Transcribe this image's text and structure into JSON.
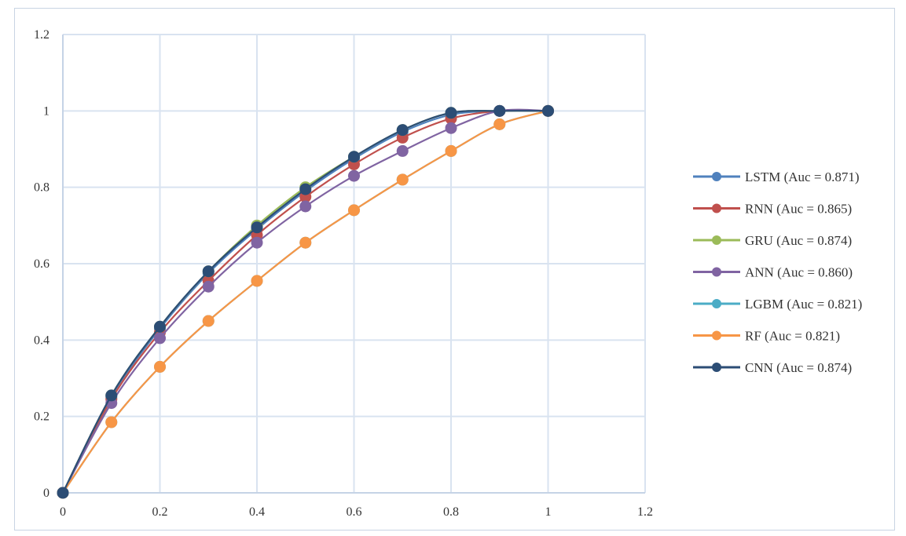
{
  "chart_data": {
    "type": "line",
    "title": "",
    "xlabel": "",
    "ylabel": "",
    "xlim": [
      0,
      1.2
    ],
    "ylim": [
      0,
      1.2
    ],
    "x_ticks": [
      0,
      0.2,
      0.4,
      0.6,
      0.8,
      1,
      1.2
    ],
    "y_ticks": [
      0,
      0.2,
      0.4,
      0.6,
      0.8,
      1,
      1.2
    ],
    "x_tick_labels": [
      "0",
      "0.2",
      "0.4",
      "0.6",
      "0.8",
      "1",
      "1.2"
    ],
    "y_tick_labels": [
      "0",
      "0.2",
      "0.4",
      "0.6",
      "0.8",
      "1",
      "1.2"
    ],
    "grid": true,
    "legend_position": "right",
    "x": [
      0,
      0.1,
      0.2,
      0.3,
      0.4,
      0.5,
      0.6,
      0.7,
      0.8,
      0.9,
      1.0
    ],
    "series": [
      {
        "name": "LSTM (Auc = 0.871)",
        "color": "#4f81bd",
        "values": [
          0,
          0.25,
          0.43,
          0.575,
          0.69,
          0.79,
          0.875,
          0.945,
          0.99,
          1.0,
          1.0
        ]
      },
      {
        "name": "RNN (Auc = 0.865)",
        "color": "#c0504d",
        "values": [
          0,
          0.245,
          0.42,
          0.555,
          0.675,
          0.775,
          0.86,
          0.93,
          0.98,
          1.0,
          1.0
        ]
      },
      {
        "name": "GRU (Auc = 0.874)",
        "color": "#9bbb59",
        "values": [
          0,
          0.255,
          0.435,
          0.58,
          0.7,
          0.8,
          0.88,
          0.95,
          0.995,
          1.0,
          1.0
        ]
      },
      {
        "name": "ANN (Auc = 0.860)",
        "color": "#8064a2",
        "values": [
          0,
          0.235,
          0.405,
          0.54,
          0.655,
          0.75,
          0.83,
          0.895,
          0.955,
          1.0,
          1.0
        ]
      },
      {
        "name": "LGBM (Auc = 0.821)",
        "color": "#4bacc6",
        "values": [
          0,
          0.185,
          0.33,
          0.45,
          0.555,
          0.655,
          0.74,
          0.82,
          0.895,
          0.965,
          1.0
        ]
      },
      {
        "name": "RF (Auc = 0.821)",
        "color": "#f79646",
        "values": [
          0,
          0.185,
          0.33,
          0.45,
          0.555,
          0.655,
          0.74,
          0.82,
          0.895,
          0.965,
          1.0
        ]
      },
      {
        "name": "CNN (Auc = 0.874)",
        "color": "#2c4d75",
        "values": [
          0,
          0.255,
          0.435,
          0.58,
          0.695,
          0.795,
          0.88,
          0.95,
          0.995,
          1.0,
          1.0
        ]
      }
    ]
  }
}
